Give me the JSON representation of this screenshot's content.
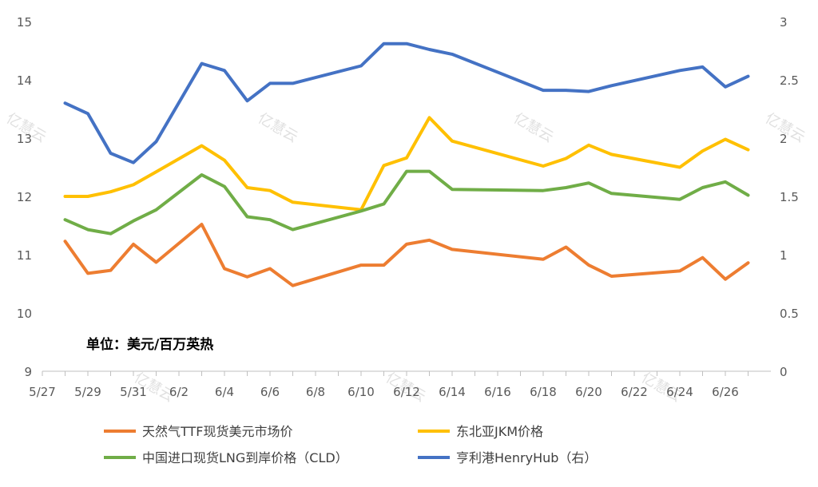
{
  "chart_data": {
    "type": "line",
    "unit_label": "单位：美元/百万英热",
    "watermark": "亿慧云",
    "x": [
      "5/28",
      "5/29",
      "5/30",
      "5/31",
      "6/1",
      "6/3",
      "6/4",
      "6/5",
      "6/6",
      "6/7",
      "6/10",
      "6/11",
      "6/12",
      "6/13",
      "6/14",
      "6/18",
      "6/19",
      "6/20",
      "6/21",
      "6/24",
      "6/25",
      "6/26",
      "6/27"
    ],
    "x_ticks": [
      "5/27",
      "5/29",
      "5/31",
      "6/2",
      "6/4",
      "6/6",
      "6/8",
      "6/10",
      "6/12",
      "6/14",
      "6/16",
      "6/18",
      "6/20",
      "6/22",
      "6/24",
      "6/26"
    ],
    "yleft_lim": [
      9,
      15
    ],
    "yleft_ticks": [
      "9",
      "10",
      "11",
      "12",
      "13",
      "14",
      "15"
    ],
    "yright_lim": [
      0,
      3
    ],
    "yright_ticks": [
      "0",
      "0.5",
      "1",
      "1.5",
      "2",
      "2.5",
      "3"
    ],
    "series": [
      {
        "name": "天然气TTF现货美元市场价",
        "color": "#ED7D31",
        "axis": "left",
        "values": [
          11.23,
          10.68,
          10.73,
          11.18,
          10.87,
          11.52,
          10.76,
          10.62,
          10.76,
          10.47,
          10.82,
          10.82,
          11.18,
          11.25,
          11.09,
          10.92,
          11.13,
          10.82,
          10.63,
          10.72,
          10.95,
          10.58,
          10.86
        ]
      },
      {
        "name": "东北亚JKM价格",
        "color": "#FFC000",
        "axis": "left",
        "values": [
          12.0,
          12.0,
          12.08,
          12.2,
          12.42,
          12.87,
          12.62,
          12.15,
          12.1,
          11.9,
          11.77,
          12.53,
          12.66,
          13.35,
          12.95,
          12.52,
          12.65,
          12.88,
          12.72,
          12.5,
          12.78,
          12.98,
          12.8
        ]
      },
      {
        "name": "中国进口现货LNG到岸价格（CLD）",
        "color": "#70AD47",
        "axis": "left",
        "values": [
          11.6,
          11.43,
          11.36,
          11.58,
          11.77,
          12.37,
          12.17,
          11.65,
          11.6,
          11.43,
          11.75,
          11.87,
          12.43,
          12.43,
          12.12,
          12.1,
          12.15,
          12.23,
          12.05,
          11.95,
          12.15,
          12.25,
          12.02
        ]
      },
      {
        "name": "亨利港HenryHub（右）",
        "color": "#4472C4",
        "axis": "right",
        "values": [
          2.3,
          2.21,
          1.87,
          1.79,
          1.97,
          2.64,
          2.58,
          2.32,
          2.47,
          2.47,
          2.62,
          2.81,
          2.81,
          2.76,
          2.72,
          2.41,
          2.41,
          2.4,
          2.45,
          2.58,
          2.61,
          2.44,
          2.53
        ]
      }
    ],
    "legend_position": "bottom",
    "grid": false
  }
}
